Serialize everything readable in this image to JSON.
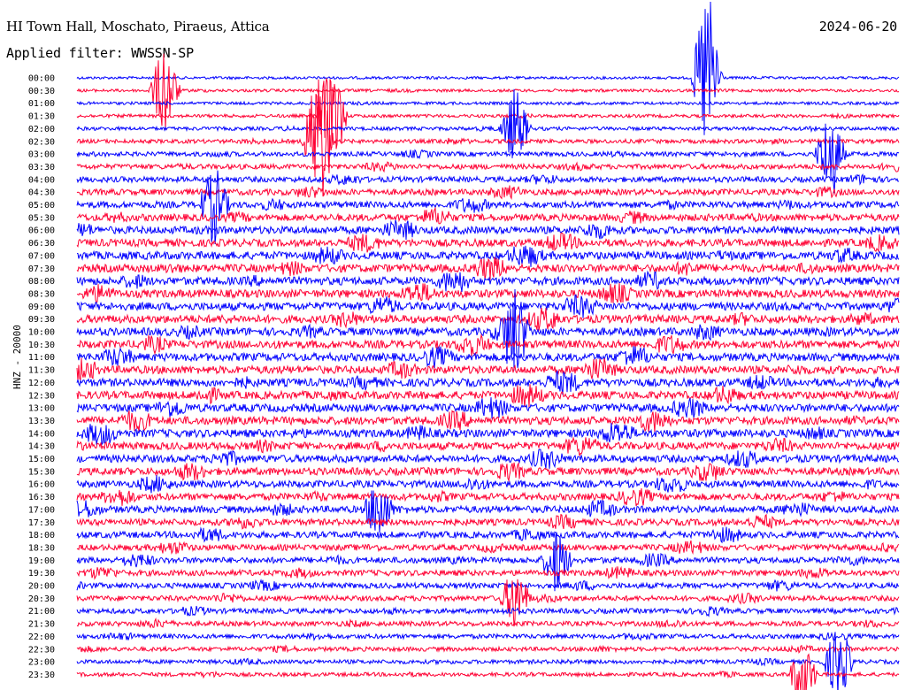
{
  "header": {
    "station": "HI Town Hall, Moschato, Piraeus, Attica",
    "date": "2024-06-20",
    "filter": "Applied filter: WWSSN-SP",
    "channel": "HNZ - 20000"
  },
  "colors": {
    "even_row": "#0000ff",
    "odd_row": "#ff0033",
    "text": "#000000"
  },
  "chart_data": {
    "type": "line",
    "title": "HI Town Hall, Moschato, Piraeus, Attica",
    "date": "2024-06-20",
    "filter": "WWSSN-SP",
    "ylabel": "HNZ - 20000",
    "row_interval_minutes": 30,
    "rows": [
      "00:00",
      "00:30",
      "01:00",
      "01:30",
      "02:00",
      "02:30",
      "03:00",
      "03:30",
      "04:00",
      "04:30",
      "05:00",
      "05:30",
      "06:00",
      "06:30",
      "07:00",
      "07:30",
      "08:00",
      "08:30",
      "09:00",
      "09:30",
      "10:00",
      "10:30",
      "11:00",
      "11:30",
      "12:00",
      "12:30",
      "13:00",
      "13:30",
      "14:00",
      "14:30",
      "15:00",
      "15:30",
      "16:00",
      "16:30",
      "17:00",
      "17:30",
      "18:00",
      "18:30",
      "19:00",
      "19:30",
      "20:00",
      "20:30",
      "21:00",
      "21:30",
      "22:00",
      "22:30",
      "23:00",
      "23:30"
    ],
    "row_colors": [
      "blue",
      "red"
    ],
    "noise_level": [
      0.05,
      0.08,
      0.08,
      0.12,
      0.15,
      0.2,
      0.25,
      0.3,
      0.35,
      0.4,
      0.45,
      0.5,
      0.55,
      0.55,
      0.6,
      0.6,
      0.6,
      0.6,
      0.6,
      0.6,
      0.6,
      0.6,
      0.6,
      0.6,
      0.6,
      0.6,
      0.6,
      0.6,
      0.6,
      0.55,
      0.55,
      0.55,
      0.5,
      0.5,
      0.5,
      0.45,
      0.45,
      0.4,
      0.4,
      0.38,
      0.35,
      0.32,
      0.3,
      0.28,
      0.25,
      0.22,
      0.2,
      0.18
    ],
    "events": [
      {
        "row": 0,
        "minute": 23.0,
        "amp": 6.0
      },
      {
        "row": 1,
        "minute": 3.2,
        "amp": 3.0
      },
      {
        "row": 3,
        "minute": 9.3,
        "amp": 4.0
      },
      {
        "row": 4,
        "minute": 16.0,
        "amp": 2.5
      },
      {
        "row": 5,
        "minute": 8.8,
        "amp": 5.0
      },
      {
        "row": 6,
        "minute": 27.5,
        "amp": 3.0
      },
      {
        "row": 10,
        "minute": 5.0,
        "amp": 2.5
      },
      {
        "row": 20,
        "minute": 16.0,
        "amp": 2.5
      },
      {
        "row": 34,
        "minute": 11.0,
        "amp": 2.0
      },
      {
        "row": 38,
        "minute": 17.5,
        "amp": 2.0
      },
      {
        "row": 41,
        "minute": 16.0,
        "amp": 2.0
      },
      {
        "row": 46,
        "minute": 27.8,
        "amp": 2.5
      },
      {
        "row": 47,
        "minute": 26.5,
        "amp": 2.0
      }
    ]
  }
}
